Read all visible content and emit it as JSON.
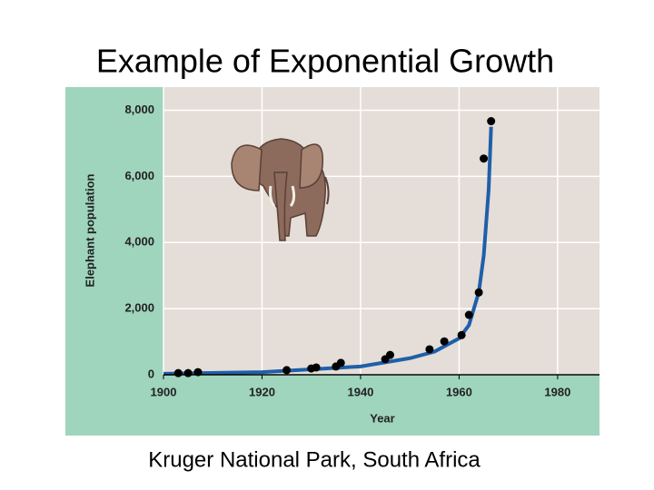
{
  "chart_data": {
    "type": "scatter",
    "title": "Example of Exponential Growth",
    "caption": "Kruger National Park, South Africa",
    "x_label": "Year",
    "y_label": "Elephant population",
    "xlim": [
      1900,
      1988.5
    ],
    "ylim": [
      0,
      8700
    ],
    "xticks": [
      1900,
      1920,
      1940,
      1960,
      1980
    ],
    "yticks": [
      0,
      {
        "value": 2000,
        "label": "2,000"
      },
      {
        "value": 4000,
        "label": "4,000"
      },
      {
        "value": 6000,
        "label": "6,000"
      },
      {
        "value": 8000,
        "label": "8,000"
      }
    ],
    "grid": true,
    "series": [
      {
        "kind": "points",
        "color": "#000000",
        "x": [
          1903,
          1905,
          1907,
          1925,
          1930,
          1931,
          1935,
          1936,
          1945,
          1946,
          1954,
          1957,
          1960.5,
          1962,
          1964,
          1965,
          1966.5
        ],
        "values": [
          50,
          50,
          80,
          140,
          190,
          220,
          250,
          360,
          470,
          600,
          770,
          1010,
          1200,
          1810,
          2490,
          6540,
          7670
        ]
      },
      {
        "kind": "curve",
        "color": "#1f5fa8",
        "x": [
          1900,
          1920,
          1940,
          1950,
          1955,
          1960,
          1962,
          1964,
          1965,
          1966,
          1966.5
        ],
        "values": [
          30,
          80,
          250,
          500,
          700,
          1100,
          1500,
          2500,
          3600,
          5600,
          7500
        ]
      }
    ]
  }
}
